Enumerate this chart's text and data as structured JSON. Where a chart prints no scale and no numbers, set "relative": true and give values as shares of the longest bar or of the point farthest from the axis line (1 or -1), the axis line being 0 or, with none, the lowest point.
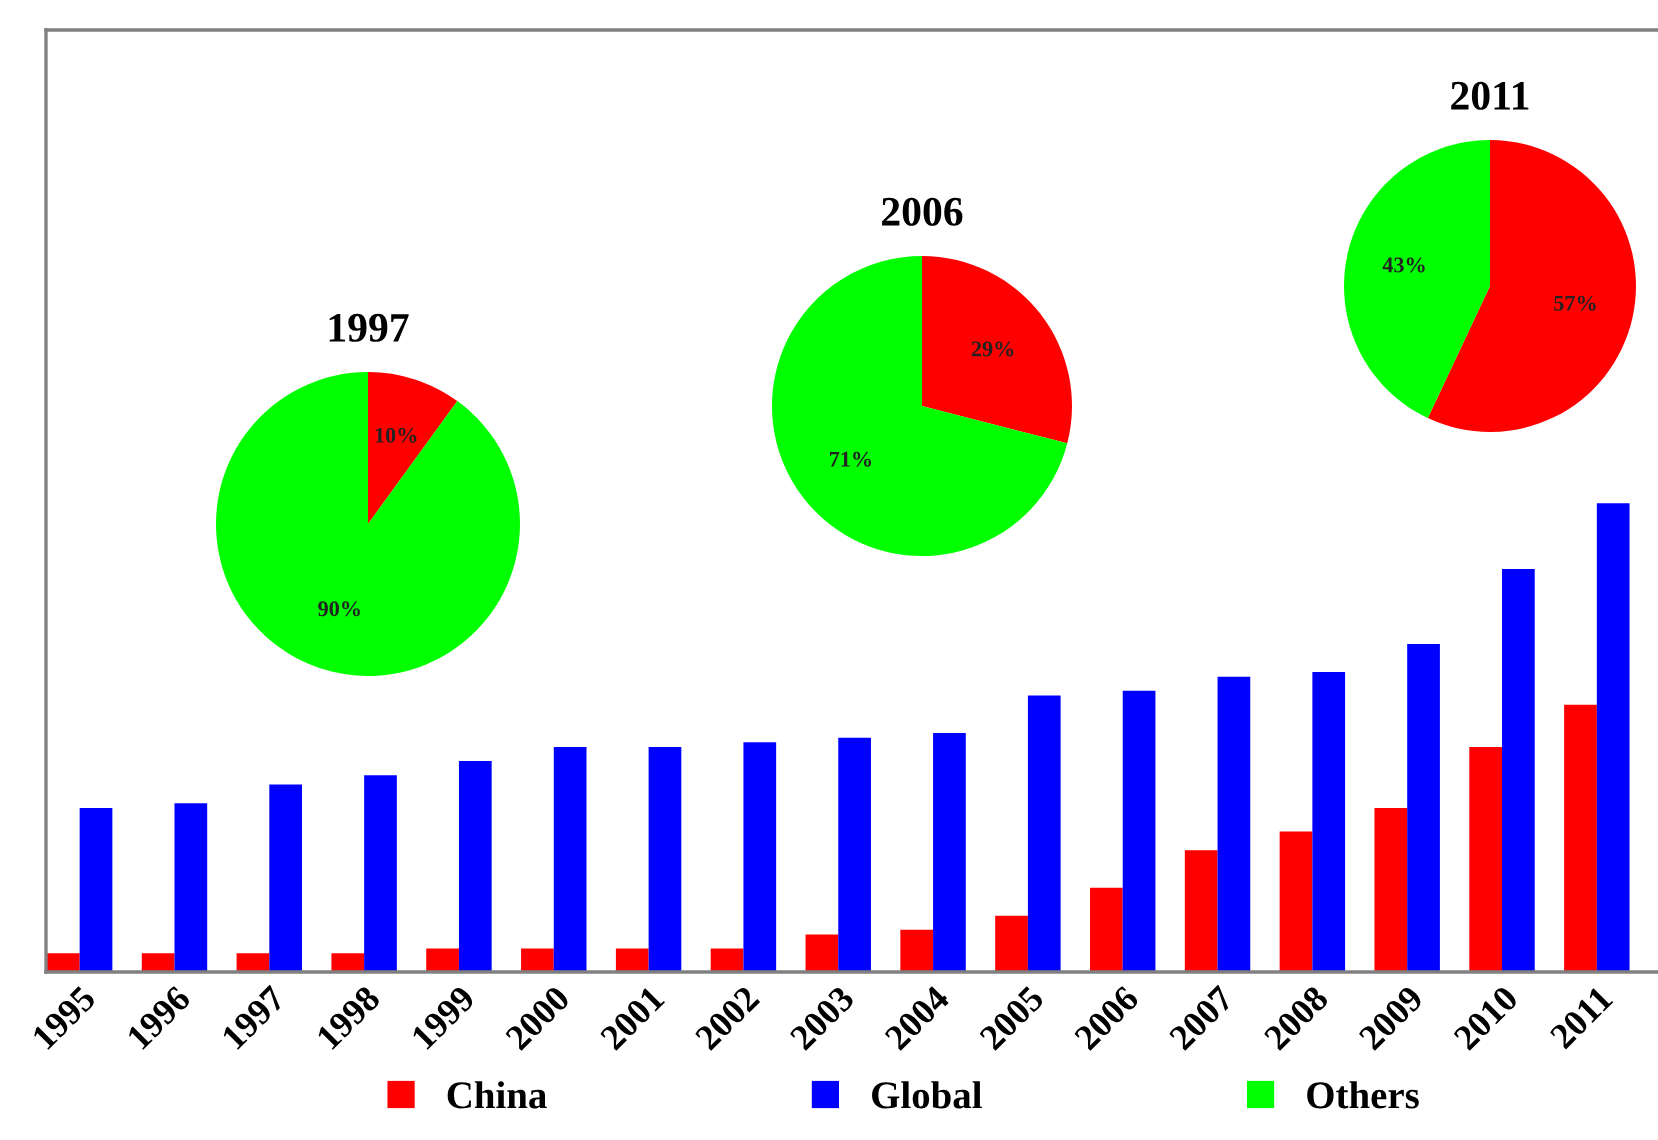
{
  "chart_data": [
    {
      "type": "bar",
      "relative": true,
      "categories": [
        "1995",
        "1996",
        "1997",
        "1998",
        "1999",
        "2000",
        "2001",
        "2002",
        "2003",
        "2004",
        "2005",
        "2006",
        "2007",
        "2008",
        "2009",
        "2010",
        "2011"
      ],
      "series": [
        {
          "name": "China",
          "color": "#ff0000",
          "values": [
            0.04,
            0.04,
            0.04,
            0.04,
            0.05,
            0.05,
            0.05,
            0.05,
            0.08,
            0.09,
            0.12,
            0.18,
            0.26,
            0.3,
            0.35,
            0.48,
            0.57
          ]
        },
        {
          "name": "Global",
          "color": "#0000ff",
          "values": [
            0.35,
            0.36,
            0.4,
            0.42,
            0.45,
            0.48,
            0.48,
            0.49,
            0.5,
            0.51,
            0.59,
            0.6,
            0.63,
            0.64,
            0.7,
            0.86,
            1
          ]
        }
      ],
      "legend": "bottom"
    },
    {
      "type": "pie",
      "title": "1997",
      "categories": [
        null,
        "Others"
      ],
      "values": [
        10,
        90
      ],
      "colors": [
        "#ff0000",
        "#00ff00"
      ],
      "value_labels": [
        "10%",
        "90%"
      ],
      "legend": "bottom"
    },
    {
      "type": "pie",
      "title": "2006",
      "categories": [
        null,
        null
      ],
      "values": [
        29,
        71
      ],
      "colors": [
        "#ff0000",
        "#00ff00"
      ],
      "value_labels": [
        "29%",
        "71%"
      ]
    },
    {
      "type": "pie",
      "title": "2011",
      "categories": [
        null,
        null
      ],
      "values": [
        57,
        43
      ],
      "colors": [
        "#ff0000",
        "#00ff00"
      ],
      "value_labels": [
        "57%",
        "43%"
      ]
    }
  ]
}
